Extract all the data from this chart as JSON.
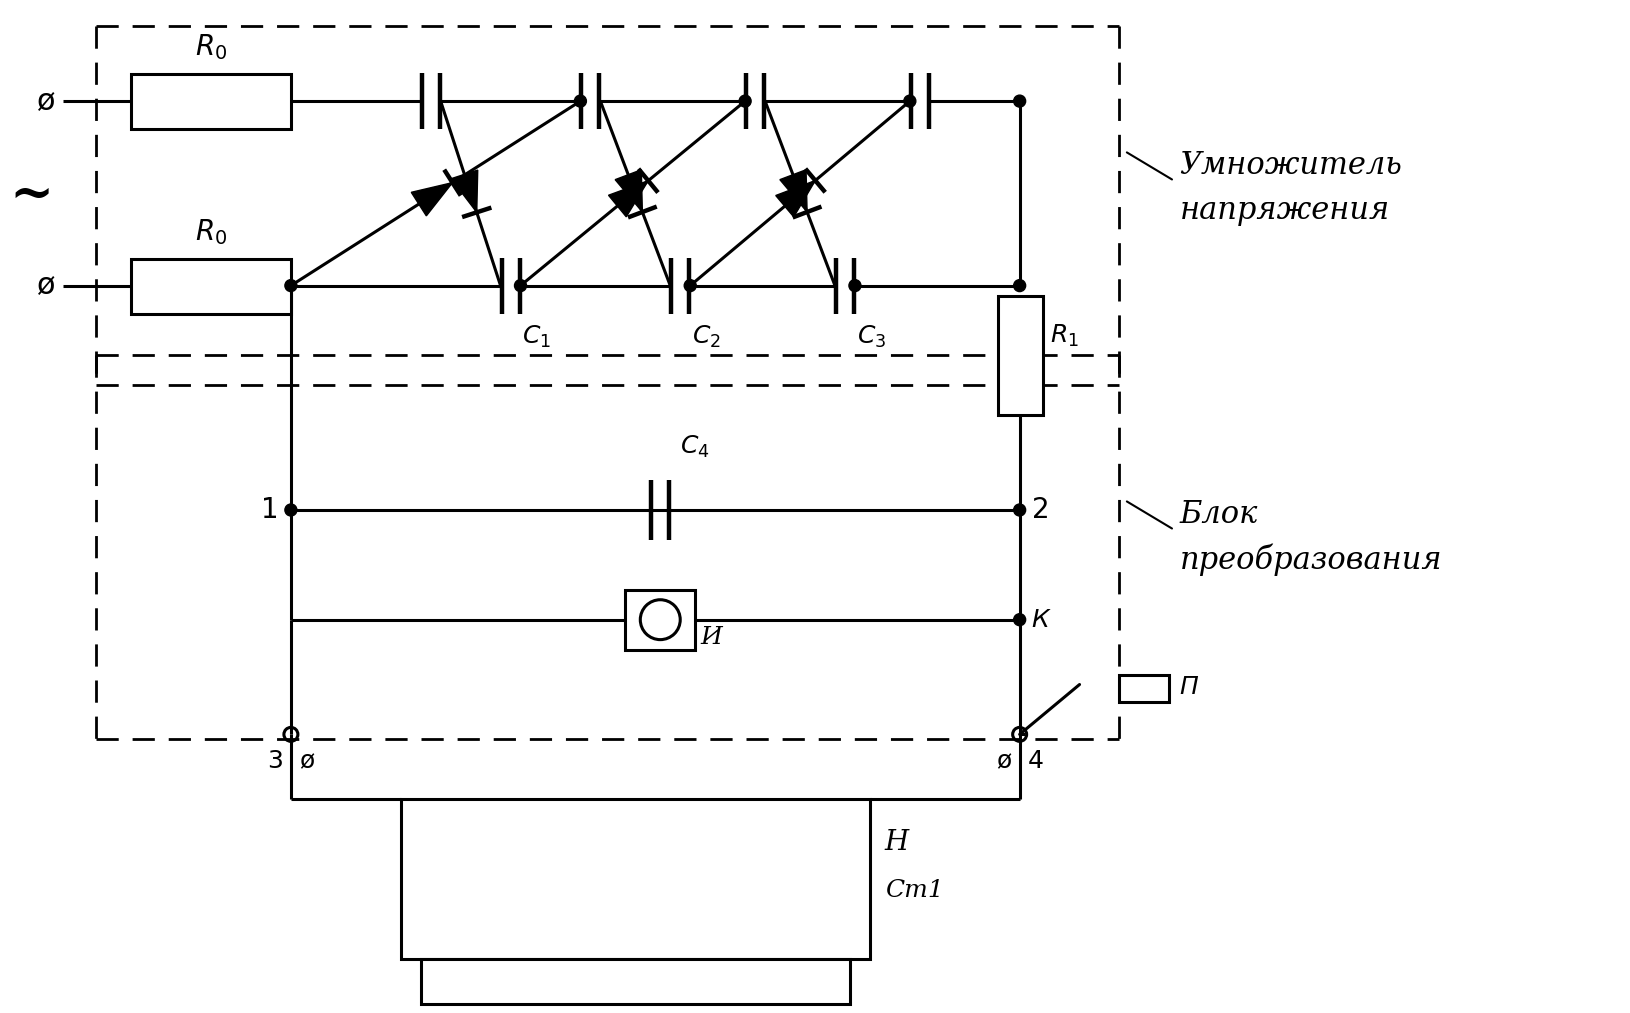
{
  "bg_color": "#ffffff",
  "line_color": "#000000",
  "lw": 2.2,
  "lw_thin": 1.4,
  "title1": "Умножитель",
  "title2": "напряжения",
  "title3": "Блок",
  "title4": "преобразования",
  "label_tilde": "~",
  "label_R0": "R0",
  "label_R1": "R1",
  "label_C1": "C1",
  "label_C2": "C2",
  "label_C3": "C3",
  "label_C4": "C4",
  "label_H": "H",
  "label_St1": "Cm1",
  "label_I": "И",
  "label_K": "К",
  "label_P": "П",
  "label_1": "1",
  "label_2": "2",
  "label_3": "3",
  "label_4": "4"
}
